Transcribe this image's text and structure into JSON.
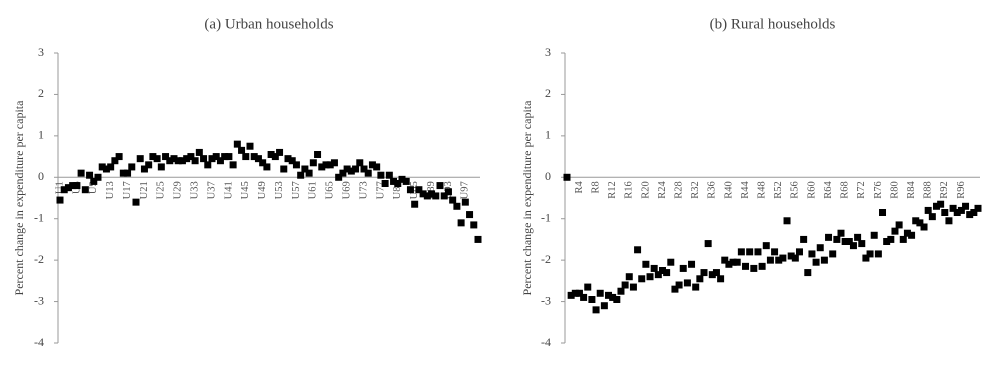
{
  "chart_data": [
    {
      "type": "scatter",
      "title": "(a) Urban households",
      "y_label": "Percent change in expenditure per capita",
      "color": "#000000",
      "categories": [
        "U1",
        null,
        null,
        null,
        "U5",
        null,
        null,
        null,
        "U9",
        null,
        null,
        null,
        "U13",
        null,
        null,
        null,
        "U17",
        null,
        null,
        null,
        "U21",
        null,
        null,
        null,
        "U25",
        null,
        null,
        null,
        "U29",
        null,
        null,
        null,
        "U33",
        null,
        null,
        null,
        "U37",
        null,
        null,
        null,
        "U41",
        null,
        null,
        null,
        "U45",
        null,
        null,
        null,
        "U49",
        null,
        null,
        null,
        "U53",
        null,
        null,
        null,
        "U57",
        null,
        null,
        null,
        "U61",
        null,
        null,
        null,
        "U65",
        null,
        null,
        null,
        "U69",
        null,
        null,
        null,
        "U73",
        null,
        null,
        null,
        "U77",
        null,
        null,
        null,
        "U81",
        null,
        null,
        null,
        "U85",
        null,
        null,
        null,
        "U89",
        null,
        null,
        null,
        "U93",
        null,
        null,
        null,
        "U97",
        null,
        null,
        null
      ],
      "values": [
        -0.55,
        -0.3,
        -0.25,
        -0.2,
        -0.2,
        0.1,
        -0.3,
        0.05,
        -0.1,
        0.0,
        0.25,
        0.2,
        0.25,
        0.4,
        0.5,
        0.1,
        0.1,
        0.25,
        -0.6,
        0.45,
        0.2,
        0.3,
        0.5,
        0.45,
        0.25,
        0.5,
        0.4,
        0.45,
        0.4,
        0.4,
        0.45,
        0.5,
        0.4,
        0.6,
        0.45,
        0.3,
        0.45,
        0.5,
        0.4,
        0.5,
        0.5,
        0.3,
        0.8,
        0.65,
        0.5,
        0.75,
        0.5,
        0.45,
        0.35,
        0.25,
        0.55,
        0.5,
        0.6,
        0.2,
        0.45,
        0.4,
        0.3,
        0.05,
        0.2,
        0.1,
        0.35,
        0.55,
        0.25,
        0.3,
        0.3,
        0.35,
        0.0,
        0.1,
        0.2,
        0.15,
        0.2,
        0.35,
        0.2,
        0.1,
        0.3,
        0.25,
        0.05,
        -0.15,
        0.05,
        -0.1,
        -0.15,
        -0.05,
        -0.1,
        -0.3,
        -0.65,
        -0.3,
        -0.4,
        -0.45,
        -0.4,
        -0.45,
        -0.2,
        -0.45,
        -0.35,
        -0.55,
        -0.7,
        -1.1,
        -0.6,
        -0.9,
        -1.15,
        -1.5
      ],
      "ylim": [
        -4,
        3
      ],
      "yticks": [
        -4,
        -3,
        -2,
        -1,
        0,
        1,
        2,
        3
      ]
    },
    {
      "type": "scatter",
      "title": "(b) Rural households",
      "y_label": "Percent change in expenditure per capita",
      "color": "#000000",
      "categories": [
        null,
        null,
        null,
        "R4",
        null,
        null,
        null,
        "R8",
        null,
        null,
        null,
        "R12",
        null,
        null,
        null,
        "R16",
        null,
        null,
        null,
        "R20",
        null,
        null,
        null,
        "R24",
        null,
        null,
        null,
        "R28",
        null,
        null,
        null,
        "R32",
        null,
        null,
        null,
        "R36",
        null,
        null,
        null,
        "R40",
        null,
        null,
        null,
        "R44",
        null,
        null,
        null,
        "R48",
        null,
        null,
        null,
        "R52",
        null,
        null,
        null,
        "R56",
        null,
        null,
        null,
        "R60",
        null,
        null,
        null,
        "R64",
        null,
        null,
        null,
        "R68",
        null,
        null,
        null,
        "R72",
        null,
        null,
        null,
        "R76",
        null,
        null,
        null,
        "R80",
        null,
        null,
        null,
        "R84",
        null,
        null,
        null,
        "R88",
        null,
        null,
        null,
        "R92",
        null,
        null,
        null,
        "R96",
        null,
        null,
        null,
        null
      ],
      "values": [
        0,
        -2.85,
        -2.8,
        -2.8,
        -2.9,
        -2.65,
        -2.95,
        -3.2,
        -2.8,
        -3.1,
        -2.85,
        -2.9,
        -2.95,
        -2.75,
        -2.6,
        -2.4,
        -2.65,
        -1.75,
        -2.45,
        -2.1,
        -2.4,
        -2.2,
        -2.35,
        -2.25,
        -2.3,
        -2.05,
        -2.7,
        -2.6,
        -2.2,
        -2.55,
        -2.1,
        -2.65,
        -2.45,
        -2.3,
        -1.6,
        -2.35,
        -2.3,
        -2.45,
        -2.0,
        -2.1,
        -2.05,
        -2.05,
        -1.8,
        -2.15,
        -1.8,
        -2.2,
        -1.8,
        -2.15,
        -1.65,
        -2.0,
        -1.8,
        -2.0,
        -1.95,
        -1.05,
        -1.9,
        -1.95,
        -1.8,
        -1.5,
        -2.3,
        -1.85,
        -2.05,
        -1.7,
        -2.0,
        -1.45,
        -1.85,
        -1.5,
        -1.35,
        -1.55,
        -1.55,
        -1.65,
        -1.45,
        -1.6,
        -1.95,
        -1.85,
        -1.4,
        -1.85,
        -0.85,
        -1.55,
        -1.5,
        -1.3,
        -1.15,
        -1.5,
        -1.35,
        -1.4,
        -1.05,
        -1.1,
        -1.2,
        -0.8,
        -0.95,
        -0.7,
        -0.65,
        -0.85,
        -1.05,
        -0.75,
        -0.85,
        -0.8,
        -0.7,
        -0.9,
        -0.85,
        -0.75
      ],
      "ylim": [
        -4,
        3
      ],
      "yticks": [
        -4,
        -3,
        -2,
        -1,
        0,
        1,
        2,
        3
      ]
    }
  ]
}
